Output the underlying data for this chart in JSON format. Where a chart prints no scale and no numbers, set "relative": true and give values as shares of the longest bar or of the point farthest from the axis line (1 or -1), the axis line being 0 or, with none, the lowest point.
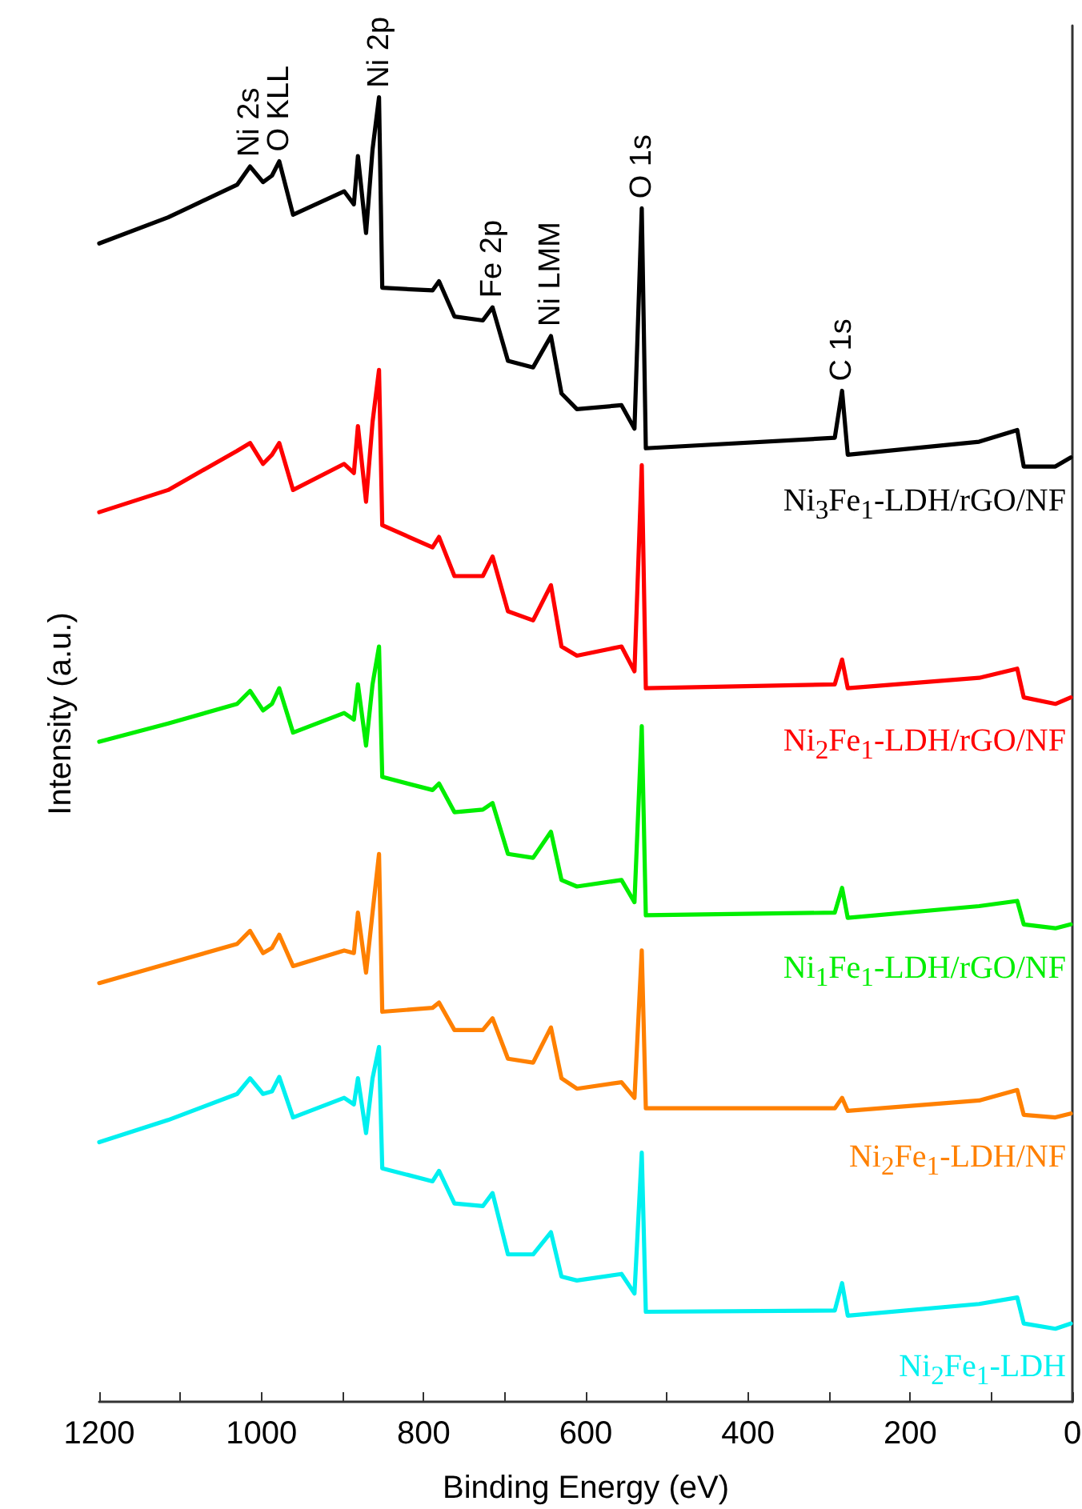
{
  "chart_data": {
    "type": "line",
    "xlabel": "Binding Energy (eV)",
    "ylabel": "Intensity (a.u.)",
    "relative": true,
    "x": [
      1200,
      1115,
      1030,
      1014,
      998,
      987,
      978,
      961,
      898,
      886,
      881,
      871,
      863,
      855,
      851,
      789,
      781,
      762,
      727,
      715,
      696,
      665,
      643,
      630,
      611,
      556,
      540,
      531,
      526,
      293,
      284,
      277,
      115,
      68,
      60,
      21,
      2
    ],
    "series": [
      {
        "name": "Ni$_{3}$Fe$_{1}$-LDH/rGO/NF",
        "color": "#000000",
        "values": [
          0.888,
          0.908,
          0.933,
          0.947,
          0.935,
          0.94,
          0.951,
          0.91,
          0.928,
          0.918,
          0.955,
          0.896,
          0.96,
          1.0,
          0.854,
          0.852,
          0.859,
          0.832,
          0.829,
          0.839,
          0.798,
          0.793,
          0.817,
          0.773,
          0.761,
          0.764,
          0.746,
          0.915,
          0.731,
          0.739,
          0.775,
          0.726,
          0.736,
          0.745,
          0.717,
          0.717,
          0.724
        ]
      },
      {
        "name": "Ni$_{2}$Fe$_{1}$-LDH/rGO/NF",
        "color": "#ff0000",
        "values": [
          0.682,
          0.699,
          0.729,
          0.735,
          0.719,
          0.726,
          0.735,
          0.699,
          0.719,
          0.712,
          0.748,
          0.69,
          0.751,
          0.791,
          0.672,
          0.655,
          0.663,
          0.633,
          0.633,
          0.648,
          0.606,
          0.599,
          0.626,
          0.579,
          0.572,
          0.579,
          0.56,
          0.718,
          0.547,
          0.55,
          0.569,
          0.547,
          0.555,
          0.562,
          0.54,
          0.535,
          0.54
        ]
      },
      {
        "name": "Ni$_{1}$Fe$_{1}$-LDH/rGO/NF",
        "color": "#00ee00",
        "values": [
          0.506,
          0.52,
          0.535,
          0.545,
          0.53,
          0.535,
          0.547,
          0.513,
          0.528,
          0.523,
          0.55,
          0.503,
          0.55,
          0.579,
          0.479,
          0.469,
          0.474,
          0.452,
          0.454,
          0.459,
          0.42,
          0.417,
          0.437,
          0.4,
          0.395,
          0.4,
          0.383,
          0.518,
          0.373,
          0.375,
          0.394,
          0.371,
          0.38,
          0.384,
          0.366,
          0.363,
          0.366
        ]
      },
      {
        "name": "Ni$_{2}$Fe$_{1}$-LDH/NF",
        "color": "#ff8000",
        "values": [
          0.321,
          0.336,
          0.351,
          0.361,
          0.344,
          0.348,
          0.358,
          0.334,
          0.346,
          0.344,
          0.375,
          0.329,
          0.375,
          0.42,
          0.299,
          0.302,
          0.306,
          0.285,
          0.285,
          0.294,
          0.263,
          0.26,
          0.287,
          0.248,
          0.24,
          0.245,
          0.233,
          0.346,
          0.225,
          0.225,
          0.233,
          0.223,
          0.231,
          0.239,
          0.22,
          0.218,
          0.221
        ]
      },
      {
        "name": "Ni$_{2}$Fe$_{1}$-LDH",
        "color": "#00f0f0",
        "values": [
          0.199,
          0.216,
          0.236,
          0.248,
          0.236,
          0.238,
          0.249,
          0.218,
          0.233,
          0.228,
          0.248,
          0.206,
          0.248,
          0.272,
          0.179,
          0.169,
          0.177,
          0.152,
          0.15,
          0.16,
          0.113,
          0.113,
          0.13,
          0.096,
          0.093,
          0.098,
          0.083,
          0.191,
          0.069,
          0.07,
          0.091,
          0.066,
          0.075,
          0.08,
          0.06,
          0.056,
          0.06
        ]
      }
    ],
    "annotations": [
      {
        "text": "Ni 2s",
        "x": 1014,
        "y": 0.947
      },
      {
        "text": "O KLL",
        "x": 978,
        "y": 0.951
      },
      {
        "text": "Ni 2p",
        "x": 855,
        "y": 1.0
      },
      {
        "text": "Fe 2p",
        "x": 715,
        "y": 0.839
      },
      {
        "text": "Ni LMM",
        "x": 643,
        "y": 0.817
      },
      {
        "text": "O 1s",
        "x": 531,
        "y": 0.915
      },
      {
        "text": "C 1s",
        "x": 284,
        "y": 0.775
      }
    ],
    "xlim": [
      1200,
      0
    ],
    "xticks": [
      1200,
      {
        "value": 1100,
        "label": null
      },
      1000,
      {
        "value": 900,
        "label": null
      },
      800,
      {
        "value": 700,
        "label": null
      },
      600,
      {
        "value": 500,
        "label": null
      },
      400,
      {
        "value": 300,
        "label": null
      },
      200,
      {
        "value": 100,
        "label": null
      },
      0
    ],
    "grid": false,
    "marker": "none",
    "line_style": "solid"
  }
}
